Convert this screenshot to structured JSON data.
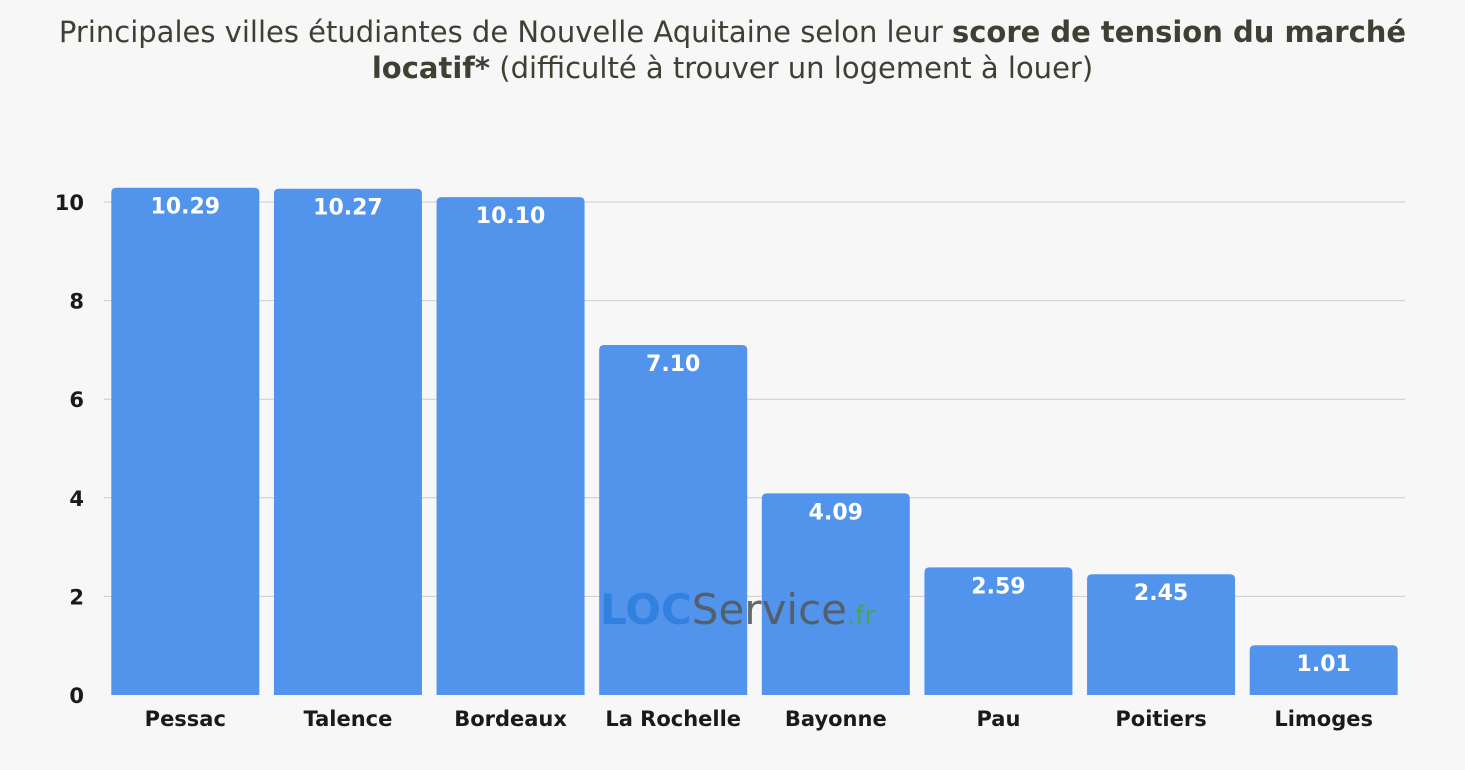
{
  "title": {
    "part1": "Principales villes étudiantes de Nouvelle Aquitaine selon leur ",
    "bold": "score de tension du marché locatif*",
    "part2": " (difficulté à trouver un logement à louer)"
  },
  "watermark": {
    "loc": "LOC",
    "service": "Service",
    "fr": ".fr"
  },
  "colors": {
    "bar": "#5294ec",
    "grid": "#cccccc",
    "background": "#f7f7f7"
  },
  "chart_data": {
    "type": "bar",
    "title": "Principales villes étudiantes de Nouvelle Aquitaine selon leur score de tension du marché locatif* (difficulté à trouver un logement à louer)",
    "xlabel": "",
    "ylabel": "",
    "categories": [
      "Pessac",
      "Talence",
      "Bordeaux",
      "La Rochelle",
      "Bayonne",
      "Pau",
      "Poitiers",
      "Limoges"
    ],
    "values": [
      10.29,
      10.27,
      10.1,
      7.1,
      4.09,
      2.59,
      2.45,
      1.01
    ],
    "data_labels": [
      "10.29",
      "10.27",
      "10.10",
      "7.10",
      "4.09",
      "2.59",
      "2.45",
      "1.01"
    ],
    "yticks": [
      0,
      2,
      4,
      6,
      8,
      10
    ],
    "ylim": [
      0,
      10.3
    ],
    "grid": true,
    "legend": "none"
  }
}
